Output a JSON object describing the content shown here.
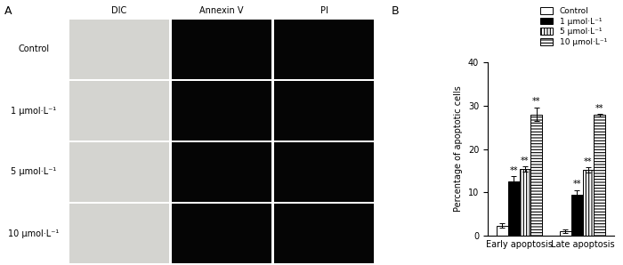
{
  "panel_a": {
    "label": "A",
    "columns": [
      "DIC",
      "Annexin V",
      "PI"
    ],
    "rows": [
      "Control",
      "1 μmol·L⁻¹",
      "5 μmol·L⁻¹",
      "10 μmol·L⁻¹"
    ]
  },
  "panel_b_label": "B",
  "chart_data": {
    "type": "bar",
    "y_label": "Percentage of apoptotic cells",
    "categories": [
      "Early apoptosis",
      "Late apoptosis"
    ],
    "series": [
      {
        "name": "Control",
        "color": "#ffffff",
        "values": [
          2.3,
          1.0
        ],
        "errors": [
          0.5,
          0.4
        ],
        "significance": [
          null,
          null
        ]
      },
      {
        "name": "1 μmol·L⁻¹",
        "color": "#000000",
        "values": [
          12.5,
          9.5
        ],
        "errors": [
          1.2,
          1.0
        ],
        "significance": [
          "**",
          "**"
        ]
      },
      {
        "name": "5 μmol·L⁻¹",
        "color": "#ffffff",
        "values": [
          15.3,
          15.2
        ],
        "errors": [
          0.6,
          0.6
        ],
        "significance": [
          "**",
          "**"
        ]
      },
      {
        "name": "10 μmol·L⁻¹",
        "color": "#ffffff",
        "values": [
          28.0,
          27.8
        ],
        "errors": [
          1.6,
          0.3
        ],
        "significance": [
          "**",
          "**"
        ]
      }
    ],
    "ylim": [
      0,
      40
    ],
    "yticks": [
      0,
      10,
      20,
      30,
      40
    ],
    "legend": "upper right"
  }
}
